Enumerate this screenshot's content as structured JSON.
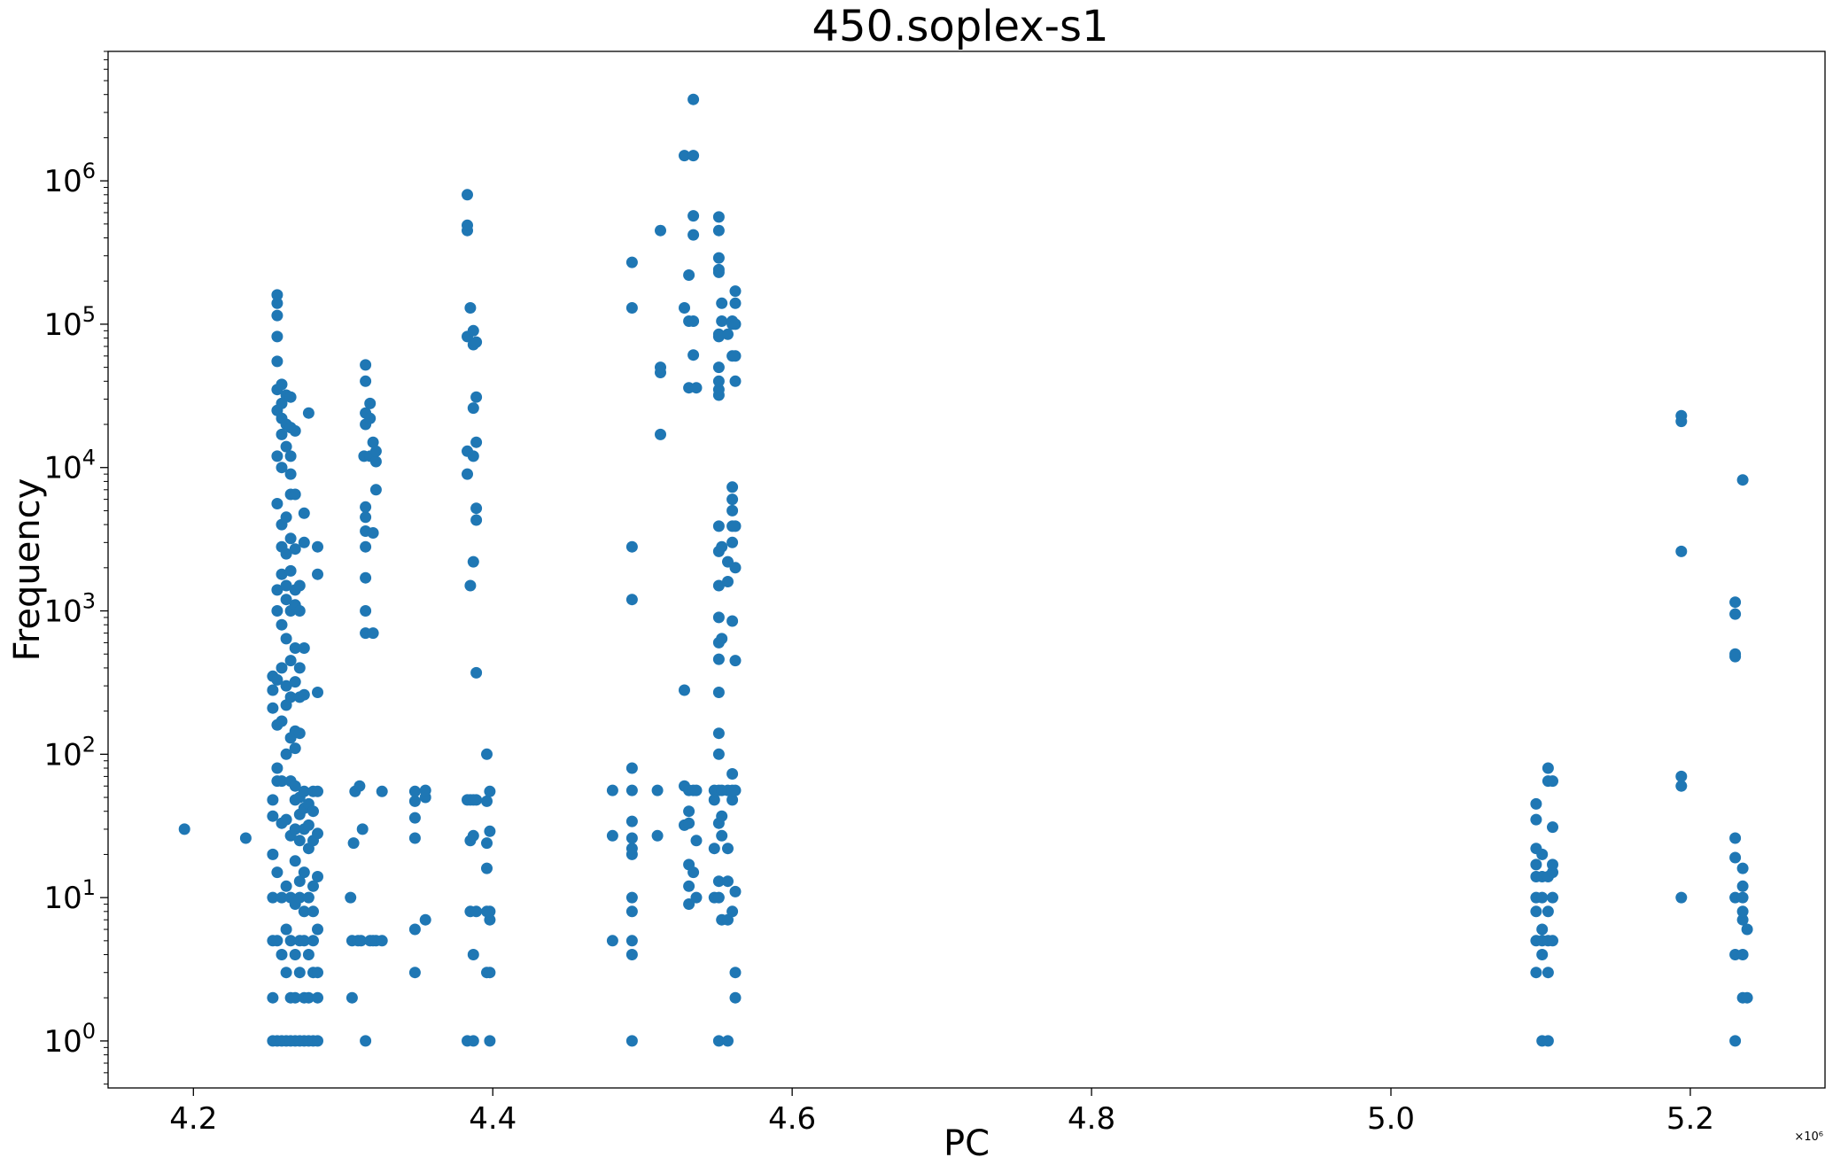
{
  "chart_data": {
    "type": "scatter",
    "title": "450.soplex-s1",
    "xlabel": "PC",
    "ylabel": "Frequency",
    "x_offset_text": "×10⁶",
    "x_scale_factor": 1000000,
    "xlim": [
      4.143,
      5.29
    ],
    "ylim": [
      0.47,
      8000000
    ],
    "yscale": "log",
    "grid": false,
    "legend": "none",
    "color": "#1f77b4",
    "x_ticks": [
      4.2,
      4.4,
      4.6,
      4.8,
      5.0,
      5.2
    ],
    "x_tick_labels": [
      "4.2",
      "4.4",
      "4.6",
      "4.8",
      "5.0",
      "5.2"
    ],
    "y_ticks": [
      1,
      10,
      100,
      1000,
      10000,
      100000,
      1000000
    ],
    "y_tick_labels": [
      {
        "base": "10",
        "exp": "0"
      },
      {
        "base": "10",
        "exp": "1"
      },
      {
        "base": "10",
        "exp": "2"
      },
      {
        "base": "10",
        "exp": "3"
      },
      {
        "base": "10",
        "exp": "4"
      },
      {
        "base": "10",
        "exp": "5"
      },
      {
        "base": "10",
        "exp": "6"
      }
    ],
    "points": [
      [
        4.194,
        30
      ],
      [
        4.235,
        26
      ],
      [
        4.253,
        1
      ],
      [
        4.253,
        2
      ],
      [
        4.253,
        5
      ],
      [
        4.253,
        10
      ],
      [
        4.253,
        20
      ],
      [
        4.253,
        37
      ],
      [
        4.253,
        48
      ],
      [
        4.253,
        210
      ],
      [
        4.253,
        280
      ],
      [
        4.253,
        350
      ],
      [
        4.256,
        1
      ],
      [
        4.256,
        5
      ],
      [
        4.256,
        15
      ],
      [
        4.256,
        65
      ],
      [
        4.256,
        80
      ],
      [
        4.256,
        160
      ],
      [
        4.256,
        330
      ],
      [
        4.256,
        1000
      ],
      [
        4.256,
        1400
      ],
      [
        4.256,
        5600
      ],
      [
        4.256,
        12000
      ],
      [
        4.256,
        25000
      ],
      [
        4.256,
        35000
      ],
      [
        4.256,
        55000
      ],
      [
        4.256,
        82000
      ],
      [
        4.256,
        115000
      ],
      [
        4.256,
        140000
      ],
      [
        4.256,
        160000
      ],
      [
        4.259,
        1
      ],
      [
        4.259,
        4
      ],
      [
        4.259,
        10
      ],
      [
        4.259,
        33
      ],
      [
        4.259,
        65
      ],
      [
        4.259,
        170
      ],
      [
        4.259,
        400
      ],
      [
        4.259,
        800
      ],
      [
        4.259,
        1800
      ],
      [
        4.259,
        2800
      ],
      [
        4.259,
        4000
      ],
      [
        4.259,
        10000
      ],
      [
        4.259,
        17000
      ],
      [
        4.259,
        22000
      ],
      [
        4.259,
        28000
      ],
      [
        4.259,
        38000
      ],
      [
        4.262,
        1
      ],
      [
        4.262,
        3
      ],
      [
        4.262,
        6
      ],
      [
        4.262,
        12
      ],
      [
        4.262,
        35
      ],
      [
        4.262,
        100
      ],
      [
        4.262,
        220
      ],
      [
        4.262,
        300
      ],
      [
        4.262,
        640
      ],
      [
        4.262,
        1200
      ],
      [
        4.262,
        1500
      ],
      [
        4.262,
        2500
      ],
      [
        4.262,
        4500
      ],
      [
        4.262,
        14000
      ],
      [
        4.262,
        20000
      ],
      [
        4.262,
        32000
      ],
      [
        4.265,
        1
      ],
      [
        4.265,
        2
      ],
      [
        4.265,
        5
      ],
      [
        4.265,
        10
      ],
      [
        4.265,
        27
      ],
      [
        4.265,
        65
      ],
      [
        4.265,
        130
      ],
      [
        4.265,
        250
      ],
      [
        4.265,
        450
      ],
      [
        4.265,
        1000
      ],
      [
        4.265,
        1900
      ],
      [
        4.265,
        3200
      ],
      [
        4.265,
        6500
      ],
      [
        4.265,
        9000
      ],
      [
        4.265,
        12000
      ],
      [
        4.265,
        19000
      ],
      [
        4.265,
        31000
      ],
      [
        4.268,
        1
      ],
      [
        4.268,
        2
      ],
      [
        4.268,
        4
      ],
      [
        4.268,
        9
      ],
      [
        4.268,
        18
      ],
      [
        4.268,
        30
      ],
      [
        4.268,
        48
      ],
      [
        4.268,
        60
      ],
      [
        4.268,
        110
      ],
      [
        4.268,
        145
      ],
      [
        4.268,
        320
      ],
      [
        4.268,
        550
      ],
      [
        4.268,
        1100
      ],
      [
        4.268,
        1400
      ],
      [
        4.268,
        2700
      ],
      [
        4.268,
        6500
      ],
      [
        4.268,
        18000
      ],
      [
        4.271,
        1
      ],
      [
        4.271,
        3
      ],
      [
        4.271,
        5
      ],
      [
        4.271,
        10
      ],
      [
        4.271,
        13
      ],
      [
        4.271,
        25
      ],
      [
        4.271,
        38
      ],
      [
        4.271,
        50
      ],
      [
        4.271,
        140
      ],
      [
        4.271,
        250
      ],
      [
        4.271,
        400
      ],
      [
        4.271,
        1000
      ],
      [
        4.271,
        1500
      ],
      [
        4.274,
        1
      ],
      [
        4.274,
        2
      ],
      [
        4.274,
        5
      ],
      [
        4.274,
        8
      ],
      [
        4.274,
        15
      ],
      [
        4.274,
        30
      ],
      [
        4.274,
        42
      ],
      [
        4.274,
        55
      ],
      [
        4.274,
        260
      ],
      [
        4.274,
        550
      ],
      [
        4.274,
        3000
      ],
      [
        4.274,
        4800
      ],
      [
        4.277,
        1
      ],
      [
        4.277,
        2
      ],
      [
        4.277,
        4
      ],
      [
        4.277,
        10
      ],
      [
        4.277,
        22
      ],
      [
        4.277,
        32
      ],
      [
        4.277,
        45
      ],
      [
        4.277,
        24000
      ],
      [
        4.28,
        1
      ],
      [
        4.28,
        3
      ],
      [
        4.28,
        5
      ],
      [
        4.28,
        8
      ],
      [
        4.28,
        12
      ],
      [
        4.28,
        25
      ],
      [
        4.28,
        40
      ],
      [
        4.28,
        55
      ],
      [
        4.283,
        1
      ],
      [
        4.283,
        2
      ],
      [
        4.283,
        3
      ],
      [
        4.283,
        6
      ],
      [
        4.283,
        14
      ],
      [
        4.283,
        28
      ],
      [
        4.283,
        55
      ],
      [
        4.283,
        270
      ],
      [
        4.283,
        1800
      ],
      [
        4.283,
        2800
      ],
      [
        4.305,
        10
      ],
      [
        4.306,
        2
      ],
      [
        4.306,
        5
      ],
      [
        4.307,
        24
      ],
      [
        4.308,
        55
      ],
      [
        4.31,
        5
      ],
      [
        4.311,
        60
      ],
      [
        4.312,
        5
      ],
      [
        4.313,
        30
      ],
      [
        4.314,
        12000
      ],
      [
        4.315,
        1
      ],
      [
        4.315,
        700
      ],
      [
        4.315,
        1000
      ],
      [
        4.315,
        1700
      ],
      [
        4.315,
        2800
      ],
      [
        4.315,
        3600
      ],
      [
        4.315,
        4500
      ],
      [
        4.315,
        5300
      ],
      [
        4.315,
        20000
      ],
      [
        4.315,
        24000
      ],
      [
        4.315,
        40000
      ],
      [
        4.315,
        52000
      ],
      [
        4.318,
        5
      ],
      [
        4.318,
        12000
      ],
      [
        4.318,
        22000
      ],
      [
        4.318,
        28000
      ],
      [
        4.32,
        5
      ],
      [
        4.32,
        700
      ],
      [
        4.32,
        3500
      ],
      [
        4.32,
        15000
      ],
      [
        4.322,
        5
      ],
      [
        4.322,
        7000
      ],
      [
        4.322,
        11000
      ],
      [
        4.322,
        13000
      ],
      [
        4.326,
        5
      ],
      [
        4.326,
        55
      ],
      [
        4.348,
        3
      ],
      [
        4.348,
        6
      ],
      [
        4.348,
        26
      ],
      [
        4.348,
        36
      ],
      [
        4.348,
        47
      ],
      [
        4.348,
        55
      ],
      [
        4.355,
        7
      ],
      [
        4.355,
        50
      ],
      [
        4.355,
        56
      ],
      [
        4.383,
        1
      ],
      [
        4.383,
        48
      ],
      [
        4.383,
        9000
      ],
      [
        4.383,
        13000
      ],
      [
        4.383,
        82000
      ],
      [
        4.383,
        450000
      ],
      [
        4.383,
        490000
      ],
      [
        4.383,
        800000
      ],
      [
        4.385,
        8
      ],
      [
        4.385,
        25
      ],
      [
        4.385,
        48
      ],
      [
        4.385,
        1500
      ],
      [
        4.385,
        130000
      ],
      [
        4.387,
        1
      ],
      [
        4.387,
        4
      ],
      [
        4.387,
        27
      ],
      [
        4.387,
        48
      ],
      [
        4.387,
        2200
      ],
      [
        4.387,
        12000
      ],
      [
        4.387,
        26000
      ],
      [
        4.387,
        72000
      ],
      [
        4.387,
        90000
      ],
      [
        4.389,
        8
      ],
      [
        4.389,
        48
      ],
      [
        4.389,
        370
      ],
      [
        4.389,
        4300
      ],
      [
        4.389,
        5200
      ],
      [
        4.389,
        15000
      ],
      [
        4.389,
        31000
      ],
      [
        4.389,
        75000
      ],
      [
        4.396,
        3
      ],
      [
        4.396,
        8
      ],
      [
        4.396,
        16
      ],
      [
        4.396,
        24
      ],
      [
        4.396,
        47
      ],
      [
        4.396,
        100
      ],
      [
        4.398,
        1
      ],
      [
        4.398,
        3
      ],
      [
        4.398,
        7
      ],
      [
        4.398,
        8
      ],
      [
        4.398,
        29
      ],
      [
        4.398,
        55
      ],
      [
        4.48,
        5
      ],
      [
        4.48,
        27
      ],
      [
        4.48,
        56
      ],
      [
        4.493,
        1
      ],
      [
        4.493,
        4
      ],
      [
        4.493,
        5
      ],
      [
        4.493,
        8
      ],
      [
        4.493,
        10
      ],
      [
        4.493,
        20
      ],
      [
        4.493,
        22
      ],
      [
        4.493,
        26
      ],
      [
        4.493,
        34
      ],
      [
        4.493,
        56
      ],
      [
        4.493,
        80
      ],
      [
        4.493,
        1200
      ],
      [
        4.493,
        2800
      ],
      [
        4.493,
        130000
      ],
      [
        4.493,
        270000
      ],
      [
        4.51,
        27
      ],
      [
        4.51,
        56
      ],
      [
        4.512,
        17000
      ],
      [
        4.512,
        46000
      ],
      [
        4.512,
        50000
      ],
      [
        4.512,
        450000
      ],
      [
        4.528,
        280
      ],
      [
        4.528,
        32
      ],
      [
        4.528,
        60
      ],
      [
        4.528,
        130000
      ],
      [
        4.528,
        1500000
      ],
      [
        4.531,
        9
      ],
      [
        4.531,
        12
      ],
      [
        4.531,
        17
      ],
      [
        4.531,
        33
      ],
      [
        4.531,
        40
      ],
      [
        4.531,
        56
      ],
      [
        4.531,
        36000
      ],
      [
        4.531,
        105000
      ],
      [
        4.531,
        220000
      ],
      [
        4.534,
        15
      ],
      [
        4.534,
        56
      ],
      [
        4.534,
        61000
      ],
      [
        4.534,
        105000
      ],
      [
        4.534,
        420000
      ],
      [
        4.534,
        570000
      ],
      [
        4.534,
        1500000
      ],
      [
        4.534,
        3700000
      ],
      [
        4.536,
        10
      ],
      [
        4.536,
        25
      ],
      [
        4.536,
        56
      ],
      [
        4.536,
        36000
      ],
      [
        4.548,
        10
      ],
      [
        4.548,
        22
      ],
      [
        4.548,
        48
      ],
      [
        4.548,
        56
      ],
      [
        4.551,
        1
      ],
      [
        4.551,
        10
      ],
      [
        4.551,
        13
      ],
      [
        4.551,
        33
      ],
      [
        4.551,
        56
      ],
      [
        4.551,
        100
      ],
      [
        4.551,
        140
      ],
      [
        4.551,
        270
      ],
      [
        4.551,
        460
      ],
      [
        4.551,
        600
      ],
      [
        4.551,
        900
      ],
      [
        4.551,
        1500
      ],
      [
        4.551,
        2600
      ],
      [
        4.551,
        3900
      ],
      [
        4.551,
        32000
      ],
      [
        4.551,
        35000
      ],
      [
        4.551,
        40000
      ],
      [
        4.551,
        50000
      ],
      [
        4.551,
        82000
      ],
      [
        4.551,
        85000
      ],
      [
        4.551,
        230000
      ],
      [
        4.551,
        240000
      ],
      [
        4.551,
        290000
      ],
      [
        4.551,
        450000
      ],
      [
        4.551,
        560000
      ],
      [
        4.553,
        7
      ],
      [
        4.553,
        27
      ],
      [
        4.553,
        37
      ],
      [
        4.553,
        56
      ],
      [
        4.553,
        640
      ],
      [
        4.553,
        2800
      ],
      [
        4.553,
        105000
      ],
      [
        4.553,
        140000
      ],
      [
        4.557,
        1
      ],
      [
        4.557,
        7
      ],
      [
        4.557,
        13
      ],
      [
        4.557,
        22
      ],
      [
        4.557,
        56
      ],
      [
        4.557,
        1600
      ],
      [
        4.557,
        2200
      ],
      [
        4.557,
        85000
      ],
      [
        4.56,
        8
      ],
      [
        4.56,
        48
      ],
      [
        4.56,
        56
      ],
      [
        4.56,
        73
      ],
      [
        4.56,
        850
      ],
      [
        4.56,
        3000
      ],
      [
        4.56,
        3900
      ],
      [
        4.56,
        5000
      ],
      [
        4.56,
        6000
      ],
      [
        4.56,
        7300
      ],
      [
        4.56,
        60000
      ],
      [
        4.56,
        100000
      ],
      [
        4.56,
        105000
      ],
      [
        4.562,
        2
      ],
      [
        4.562,
        3
      ],
      [
        4.562,
        11
      ],
      [
        4.562,
        56
      ],
      [
        4.562,
        450
      ],
      [
        4.562,
        2000
      ],
      [
        4.562,
        3900
      ],
      [
        4.562,
        40000
      ],
      [
        4.562,
        60000
      ],
      [
        4.562,
        100000
      ],
      [
        4.562,
        140000
      ],
      [
        4.562,
        170000
      ],
      [
        5.097,
        3
      ],
      [
        5.097,
        5
      ],
      [
        5.097,
        8
      ],
      [
        5.097,
        10
      ],
      [
        5.097,
        14
      ],
      [
        5.097,
        17
      ],
      [
        5.097,
        22
      ],
      [
        5.097,
        35
      ],
      [
        5.097,
        45
      ],
      [
        5.101,
        1
      ],
      [
        5.101,
        4
      ],
      [
        5.101,
        5
      ],
      [
        5.101,
        6
      ],
      [
        5.101,
        10
      ],
      [
        5.101,
        14
      ],
      [
        5.101,
        20
      ],
      [
        5.105,
        1
      ],
      [
        5.105,
        3
      ],
      [
        5.105,
        5
      ],
      [
        5.105,
        8
      ],
      [
        5.105,
        14
      ],
      [
        5.105,
        65
      ],
      [
        5.105,
        80
      ],
      [
        5.108,
        5
      ],
      [
        5.108,
        10
      ],
      [
        5.108,
        15
      ],
      [
        5.108,
        17
      ],
      [
        5.108,
        31
      ],
      [
        5.108,
        65
      ],
      [
        5.194,
        10
      ],
      [
        5.194,
        60
      ],
      [
        5.194,
        70
      ],
      [
        5.194,
        2600
      ],
      [
        5.194,
        21000
      ],
      [
        5.194,
        23000
      ],
      [
        5.23,
        1
      ],
      [
        5.23,
        4
      ],
      [
        5.23,
        10
      ],
      [
        5.23,
        19
      ],
      [
        5.23,
        26
      ],
      [
        5.23,
        480
      ],
      [
        5.23,
        500
      ],
      [
        5.23,
        950
      ],
      [
        5.23,
        1150
      ],
      [
        5.235,
        2
      ],
      [
        5.235,
        4
      ],
      [
        5.235,
        7
      ],
      [
        5.235,
        8
      ],
      [
        5.235,
        10
      ],
      [
        5.235,
        12
      ],
      [
        5.235,
        16
      ],
      [
        5.235,
        8200
      ],
      [
        5.238,
        2
      ],
      [
        5.238,
        6
      ]
    ]
  }
}
